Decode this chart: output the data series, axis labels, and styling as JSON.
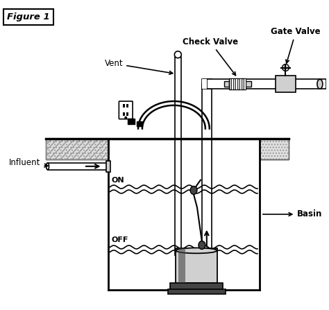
{
  "labels": {
    "figure": "Figure 1",
    "vent": "Vent",
    "check_valve": "Check Valve",
    "gate_valve": "Gate Valve",
    "influent": "Influent",
    "on": "ON",
    "off": "OFF",
    "basin": "Basin"
  },
  "colors": {
    "black": "#000000",
    "white": "#ffffff",
    "light_gray": "#d0d0d0",
    "gray": "#888888",
    "dark_gray": "#444444",
    "floor_bg": "#e0e0e0"
  },
  "layout": {
    "fig_w": 4.74,
    "fig_h": 4.47,
    "dpi": 100
  }
}
